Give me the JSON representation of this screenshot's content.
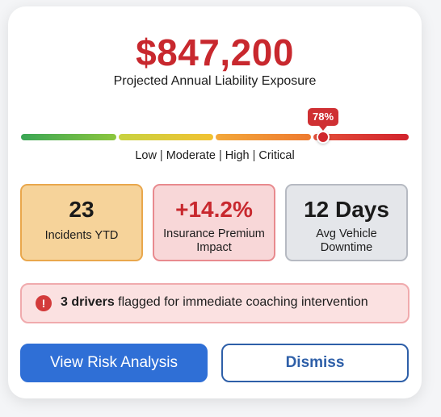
{
  "summary": {
    "amount": "$847,200",
    "subtitle": "Projected Annual Liability Exposure"
  },
  "gauge": {
    "percent_label": "78%",
    "value": 0.78,
    "levels": [
      "Low",
      "Moderate",
      "High",
      "Critical"
    ],
    "colors": {
      "low": "#3aa655",
      "moderate": "#f2c232",
      "high": "#ee7a30",
      "critical": "#d2232d"
    }
  },
  "metrics": [
    {
      "value": "23",
      "label": "Incidents YTD"
    },
    {
      "value": "+14.2%",
      "label": "Insurance Premium Impact"
    },
    {
      "value": "12 Days",
      "label": "Avg Vehicle Downtime"
    }
  ],
  "alert": {
    "icon": "alert-circle-icon",
    "bold_text": "3 drivers",
    "text": " flagged for immediate coaching intervention"
  },
  "actions": {
    "primary_label": "View Risk Analysis",
    "secondary_label": "Dismiss"
  },
  "theme": {
    "accent": "#2f6fd6",
    "danger": "#c8282e"
  }
}
